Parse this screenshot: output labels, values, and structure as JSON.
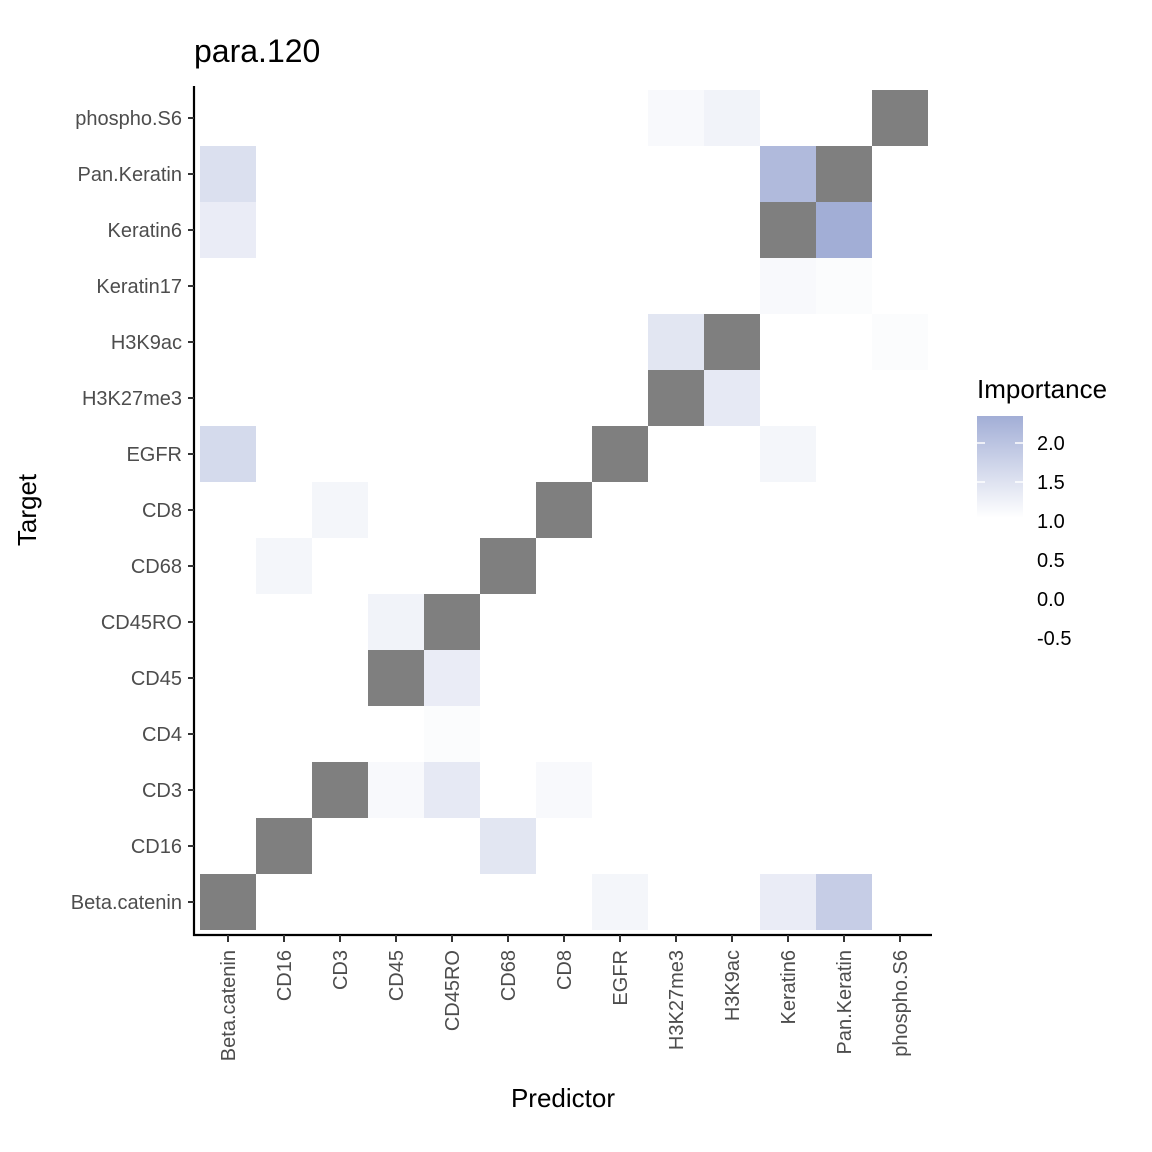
{
  "chart_data": {
    "type": "heatmap",
    "title": "para.120",
    "xlabel": "Predictor",
    "ylabel": "Target",
    "x_categories": [
      "Beta.catenin",
      "CD16",
      "CD3",
      "CD45",
      "CD45RO",
      "CD68",
      "CD8",
      "EGFR",
      "H3K27me3",
      "H3K9ac",
      "Keratin6",
      "Pan.Keratin",
      "phospho.S6"
    ],
    "y_categories": [
      "Beta.catenin",
      "CD16",
      "CD3",
      "CD4",
      "CD45",
      "CD45RO",
      "CD68",
      "CD8",
      "EGFR",
      "H3K27me3",
      "H3K9ac",
      "Keratin17",
      "Keratin6",
      "Pan.Keratin",
      "phospho.S6"
    ],
    "cells": [
      {
        "target": "phospho.S6",
        "predictor": "H3K27me3",
        "value": 1.1
      },
      {
        "target": "phospho.S6",
        "predictor": "H3K9ac",
        "value": 1.2
      },
      {
        "target": "Pan.Keratin",
        "predictor": "Beta.catenin",
        "value": 1.5
      },
      {
        "target": "Pan.Keratin",
        "predictor": "Keratin6",
        "value": 2.1
      },
      {
        "target": "Keratin6",
        "predictor": "Beta.catenin",
        "value": 1.3
      },
      {
        "target": "Keratin6",
        "predictor": "EGFR",
        "value": 1.0
      },
      {
        "target": "Keratin6",
        "predictor": "Pan.Keratin",
        "value": 2.3
      },
      {
        "target": "Keratin17",
        "predictor": "Keratin6",
        "value": 1.1
      },
      {
        "target": "Keratin17",
        "predictor": "Pan.Keratin",
        "value": 1.05
      },
      {
        "target": "H3K9ac",
        "predictor": "H3K27me3",
        "value": 1.4
      },
      {
        "target": "H3K9ac",
        "predictor": "phospho.S6",
        "value": 1.05
      },
      {
        "target": "H3K27me3",
        "predictor": "H3K9ac",
        "value": 1.35
      },
      {
        "target": "EGFR",
        "predictor": "Beta.catenin",
        "value": 1.6
      },
      {
        "target": "EGFR",
        "predictor": "Keratin6",
        "value": 1.15
      },
      {
        "target": "EGFR",
        "predictor": "Pan.Keratin",
        "value": 1.0
      },
      {
        "target": "CD8",
        "predictor": "CD3",
        "value": 1.15
      },
      {
        "target": "CD68",
        "predictor": "CD16",
        "value": 1.15
      },
      {
        "target": "CD45RO",
        "predictor": "CD45",
        "value": 1.2
      },
      {
        "target": "CD45",
        "predictor": "CD45RO",
        "value": 1.3
      },
      {
        "target": "CD4",
        "predictor": "CD45RO",
        "value": 1.05
      },
      {
        "target": "CD3",
        "predictor": "CD45",
        "value": 1.1
      },
      {
        "target": "CD3",
        "predictor": "CD45RO",
        "value": 1.35
      },
      {
        "target": "CD3",
        "predictor": "CD8",
        "value": 1.1
      },
      {
        "target": "CD16",
        "predictor": "CD68",
        "value": 1.4
      },
      {
        "target": "Beta.catenin",
        "predictor": "EGFR",
        "value": 1.15
      },
      {
        "target": "Beta.catenin",
        "predictor": "Keratin6",
        "value": 1.3
      },
      {
        "target": "Beta.catenin",
        "predictor": "Pan.Keratin",
        "value": 1.8
      }
    ],
    "diagonal_color": "#7f7f7f",
    "color_low": "#ffffff",
    "color_high": "#a2aed6",
    "legend": {
      "title": "Importance",
      "position": "right",
      "labels": [
        "2.0",
        "1.5",
        "1.0",
        "0.5",
        "0.0",
        "-0.5"
      ],
      "gradient_range": [
        1.0,
        2.3
      ]
    }
  }
}
